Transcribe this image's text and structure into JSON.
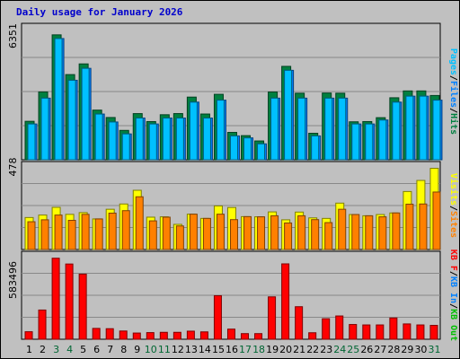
{
  "chart_data": {
    "type": "bar",
    "title": "Daily usage for January 2026",
    "categories": [
      "1",
      "2",
      "3",
      "4",
      "5",
      "6",
      "7",
      "8",
      "9",
      "10",
      "11",
      "12",
      "13",
      "14",
      "15",
      "16",
      "17",
      "18",
      "19",
      "20",
      "21",
      "22",
      "23",
      "24",
      "25",
      "26",
      "27",
      "28",
      "29",
      "30",
      "31"
    ],
    "weekend_days": [
      "3",
      "4",
      "10",
      "11",
      "17",
      "18",
      "24",
      "25",
      "31"
    ],
    "colors": {
      "hits": "#008040",
      "files": "#0080ff",
      "pages": "#00c0ff",
      "visits": "#ffff00",
      "sites": "#ff8000",
      "kb_in": "#0080ff",
      "kb_out": "#00c000",
      "kbytes": "#ff0000",
      "day_default": "#000000",
      "day_weekend": "#006633"
    },
    "panels": [
      {
        "scale_label": "6351",
        "max": 6351,
        "legend": [
          {
            "text": "Pages",
            "color": "#00c0ff"
          },
          {
            "text": "/",
            "color": "#000000"
          },
          {
            "text": "Files",
            "color": "#0080ff"
          },
          {
            "text": "/",
            "color": "#000000"
          },
          {
            "text": "Hits",
            "color": "#008040"
          }
        ],
        "series": [
          {
            "name": "Hits",
            "values": [
              1935,
              3413,
              6286,
              4286,
              4824,
              2498,
              2126,
              1478,
              2323,
              1921,
              2266,
              2324,
              3153,
              2302,
              3294,
              1377,
              1214,
              946,
              3410,
              4700,
              3350,
              1333,
              3359,
              3350,
              1910,
              1921,
              2118,
              3120,
              3464,
              3464,
              3234
            ]
          },
          {
            "name": "Files",
            "values": [
              1800,
              3100,
              6100,
              4000,
              4600,
              2300,
              1900,
              1300,
              2100,
              1800,
              2100,
              2100,
              2900,
              2100,
              3000,
              1200,
              1100,
              800,
              3100,
              4500,
              3100,
              1200,
              3100,
              3100,
              1800,
              1800,
              2000,
              2900,
              3200,
              3200,
              3000
            ]
          },
          {
            "name": "Pages",
            "values": [
              1800,
              3100,
              6100,
              4000,
              4600,
              2300,
              1900,
              1300,
              2100,
              1800,
              2100,
              2100,
              2900,
              2100,
              3000,
              1200,
              1100,
              800,
              3100,
              4500,
              3100,
              1200,
              3100,
              3100,
              1800,
              1800,
              2000,
              2900,
              3200,
              3200,
              3000
            ]
          }
        ]
      },
      {
        "scale_label": "478",
        "max": 478,
        "legend": [
          {
            "text": "Visits",
            "color": "#ffff00"
          },
          {
            "text": "/",
            "color": "#000000"
          },
          {
            "text": "Sites",
            "color": "#ff8000"
          }
        ],
        "series": [
          {
            "name": "Visits",
            "values": [
              182,
              196,
              240,
              200,
              210,
              174,
              229,
              259,
              337,
              184,
              186,
              143,
              201,
              177,
              248,
              239,
              187,
              186,
              214,
              169,
              213,
              180,
              177,
              264,
              199,
              192,
              199,
              208,
              330,
              393,
              462
            ]
          },
          {
            "name": "Sites",
            "values": [
              158,
              169,
              196,
              166,
              200,
              174,
              207,
              221,
              300,
              163,
              184,
              134,
              201,
              177,
              201,
              170,
              187,
              186,
              192,
              151,
              192,
              170,
              153,
              229,
              199,
              192,
              186,
              208,
              258,
              259,
              327
            ]
          }
        ]
      },
      {
        "scale_label": "583496",
        "max": 583496,
        "legend": [
          {
            "text": "KB F",
            "color": "#ff0000"
          },
          {
            "text": "/",
            "color": "#000000"
          },
          {
            "text": "KB In",
            "color": "#0080ff"
          },
          {
            "text": "/",
            "color": "#000000"
          },
          {
            "text": "KB Out",
            "color": "#00c000"
          }
        ],
        "series": [
          {
            "name": "KB F",
            "values": [
              52000,
              202000,
              560000,
              520000,
              450000,
              75000,
              73000,
              57000,
              43000,
              46000,
              48000,
              48000,
              56000,
              51000,
              301000,
              70000,
              39000,
              39000,
              293000,
              521000,
              225000,
              45000,
              142000,
              161000,
              102000,
              99000,
              99000,
              147000,
              106000,
              99000,
              96000
            ]
          }
        ]
      }
    ]
  }
}
